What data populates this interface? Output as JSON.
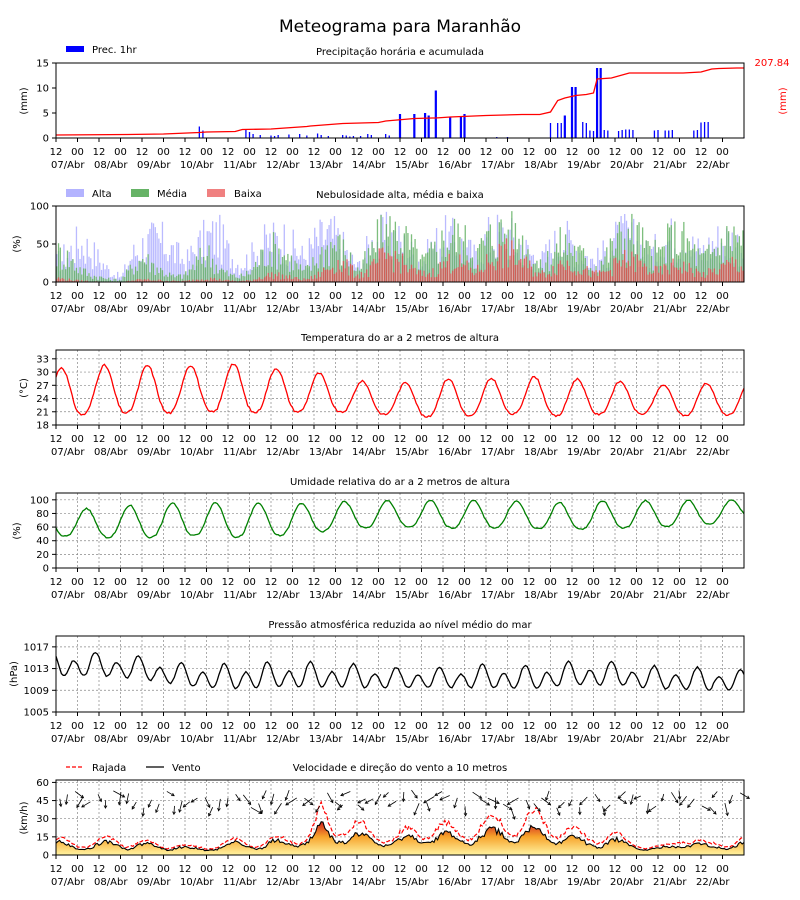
{
  "title": "Meteograma para Maranhão",
  "colors": {
    "precip_bar": "#0000ff",
    "precip_acc": "#ff0000",
    "cloud_high": "#b3b3ff",
    "cloud_mid": "#66b366",
    "cloud_low": "#e05050",
    "temperature": "#ff0000",
    "humidity": "#008000",
    "pressure": "#000000",
    "gust": "#ff0000",
    "wind": "#000000"
  },
  "x_axis": {
    "hour_labels": [
      "12",
      "00",
      "12",
      "00",
      "12",
      "00",
      "12",
      "00",
      "12",
      "00",
      "12",
      "00",
      "12",
      "00",
      "12",
      "00",
      "12",
      "00",
      "12",
      "00",
      "12",
      "00",
      "12",
      "00",
      "12",
      "00",
      "12",
      "00",
      "12",
      "00",
      "12",
      "00"
    ],
    "date_labels": [
      "07/Abr",
      "08/Abr",
      "09/Abr",
      "10/Abr",
      "11/Abr",
      "12/Abr",
      "13/Abr",
      "14/Abr",
      "15/Abr",
      "16/Abr",
      "17/Abr",
      "18/Abr",
      "19/Abr",
      "20/Abr",
      "21/Abr",
      "22/Abr"
    ],
    "n_hours": 384
  },
  "chart_data": [
    {
      "type": "bar",
      "title": "Precipitação horária e acumulada",
      "ylabel": "(mm)",
      "ylabel_right": "(mm)",
      "legend": "Prec. 1hr",
      "legend_position": "top-left",
      "ylim": [
        0,
        15
      ],
      "yticks": [
        "0",
        "5",
        "10",
        "15"
      ],
      "accumulated_total": "207.84",
      "series": [
        {
          "name": "Prec. 1hr",
          "kind": "bar",
          "x": [
            80,
            82,
            106,
            108,
            110,
            114,
            120,
            122,
            124,
            130,
            136,
            140,
            146,
            148,
            152,
            160,
            162,
            164,
            166,
            170,
            174,
            176,
            184,
            186,
            192,
            200,
            206,
            208,
            212,
            220,
            226,
            228,
            246,
            252,
            276,
            280,
            282,
            284,
            288,
            290,
            294,
            296,
            298,
            300,
            302,
            304,
            306,
            308,
            314,
            316,
            318,
            320,
            322,
            334,
            336,
            340,
            342,
            344,
            356,
            358,
            360,
            362,
            364,
            366,
            372,
            376,
            378,
            380,
            384
          ],
          "values": [
            2.3,
            1.5,
            1.8,
            1.2,
            0.8,
            0.6,
            0.5,
            0.4,
            0.6,
            0.7,
            0.8,
            0.5,
            0.9,
            0.6,
            0.4,
            0.6,
            0.5,
            0.3,
            0.4,
            0.4,
            0.8,
            0.6,
            0.8,
            0.5,
            4.8,
            4.8,
            5.0,
            4.5,
            9.5,
            4.3,
            4.4,
            4.8,
            0.2,
            0.2,
            3.0,
            3.0,
            3.0,
            4.5,
            10.2,
            10.2,
            3.2,
            3.0,
            1.5,
            1.4,
            14.0,
            14.0,
            1.6,
            1.5,
            1.4,
            1.6,
            1.7,
            1.7,
            1.6,
            1.5,
            1.6,
            1.5,
            1.5,
            1.6,
            1.5,
            1.6,
            3.1,
            3.2,
            3.2,
            0.1,
            0.1,
            0.1,
            0.1,
            0.1,
            0.1
          ]
        },
        {
          "name": "acumulada",
          "kind": "line",
          "x": [
            0,
            40,
            60,
            80,
            84,
            100,
            104,
            120,
            140,
            142,
            160,
            170,
            180,
            184,
            200,
            210,
            212,
            220,
            240,
            260,
            270,
            276,
            280,
            284,
            290,
            296,
            300,
            302,
            310,
            320,
            340,
            350,
            360,
            366,
            370,
            380,
            384
          ],
          "values": [
            0.6,
            0.7,
            0.8,
            1.1,
            1.2,
            1.3,
            1.7,
            1.8,
            2.3,
            2.4,
            2.9,
            3.0,
            3.1,
            3.4,
            3.9,
            4.0,
            4.0,
            4.2,
            4.5,
            4.7,
            4.7,
            5.2,
            7.5,
            8.0,
            8.5,
            8.7,
            9.0,
            11.8,
            12.0,
            13.0,
            13.0,
            13.0,
            13.2,
            13.8,
            13.9,
            14.0,
            14.0
          ]
        }
      ]
    },
    {
      "type": "bar",
      "title": "Nebulosidade alta, média e baixa",
      "ylabel": "(%)",
      "ylim": [
        0,
        100
      ],
      "yticks": [
        "0",
        "50",
        "100"
      ],
      "legend_position": "top-left",
      "series": [
        {
          "name": "Alta",
          "envelope": [
            40,
            60,
            80,
            70,
            45,
            20,
            10,
            55,
            75,
            85,
            80,
            60,
            40,
            70,
            90,
            95,
            60,
            35,
            50,
            75,
            85,
            90,
            70,
            50,
            80,
            95,
            90,
            60,
            30,
            70,
            90,
            95,
            80,
            60,
            40,
            75,
            90,
            85,
            70,
            50,
            90,
            98,
            95,
            80,
            60,
            40,
            70,
            90,
            80,
            60,
            40,
            60,
            85,
            95,
            80,
            55,
            70,
            90,
            95,
            75,
            60,
            80,
            90,
            85,
            70
          ]
        },
        {
          "name": "Média",
          "envelope": [
            60,
            50,
            30,
            15,
            10,
            5,
            5,
            30,
            50,
            35,
            20,
            10,
            15,
            40,
            60,
            30,
            15,
            10,
            20,
            50,
            70,
            60,
            40,
            20,
            40,
            70,
            80,
            55,
            25,
            50,
            90,
            100,
            95,
            70,
            40,
            60,
            85,
            95,
            80,
            55,
            85,
            100,
            100,
            90,
            60,
            30,
            55,
            80,
            70,
            50,
            30,
            50,
            80,
            100,
            95,
            60,
            55,
            85,
            90,
            70,
            45,
            60,
            85,
            95,
            80
          ]
        },
        {
          "name": "Baixa",
          "envelope": [
            8,
            5,
            3,
            2,
            1,
            0,
            0,
            3,
            5,
            4,
            3,
            2,
            2,
            5,
            8,
            5,
            3,
            2,
            3,
            10,
            15,
            12,
            8,
            5,
            10,
            25,
            40,
            30,
            15,
            20,
            45,
            55,
            40,
            25,
            15,
            20,
            35,
            45,
            30,
            20,
            40,
            55,
            60,
            45,
            30,
            15,
            25,
            40,
            35,
            25,
            15,
            20,
            35,
            45,
            40,
            25,
            20,
            30,
            35,
            25,
            15,
            20,
            30,
            40,
            30
          ]
        }
      ]
    },
    {
      "type": "line",
      "title": "Temperatura do ar a 2 metros de altura",
      "ylabel": "(°C)",
      "ylim": [
        18,
        35
      ],
      "yticks": [
        "18",
        "21",
        "24",
        "27",
        "30",
        "33"
      ],
      "grid": true,
      "series": [
        {
          "name": "Temperatura",
          "daily_max": [
            31.0,
            31.5,
            31.5,
            31.5,
            32.0,
            31.0,
            30.0,
            28.0,
            27.5,
            28.5,
            28.5,
            29.0,
            28.5,
            28.0,
            27.0,
            27.5,
            27.5
          ],
          "daily_min": [
            19.5,
            21.0,
            20.5,
            21.0,
            20.8,
            21.0,
            21.0,
            20.5,
            19.8,
            20.0,
            20.5,
            20.0,
            20.5,
            20.5,
            20.0,
            20.5
          ]
        }
      ]
    },
    {
      "type": "line",
      "title": "Umidade relativa do ar a 2 metros de altura",
      "ylabel": "(%)",
      "ylim": [
        0,
        110
      ],
      "yticks": [
        "0",
        "20",
        "40",
        "60",
        "80",
        "100"
      ],
      "grid": true,
      "series": [
        {
          "name": "Umidade",
          "daily_max": [
            88,
            87,
            95,
            96,
            96,
            94,
            97,
            99,
            99,
            99,
            98,
            96,
            99,
            99,
            100,
            100
          ],
          "daily_min": [
            47,
            45,
            45,
            48,
            45,
            48,
            55,
            60,
            60,
            58,
            60,
            55,
            58,
            60,
            62,
            72
          ]
        }
      ]
    },
    {
      "type": "line",
      "title": "Pressão atmosférica reduzida ao nível médio do mar",
      "ylabel": "(hPa)",
      "ylim": [
        1005,
        1019
      ],
      "yticks": [
        "1005",
        "1009",
        "1013",
        "1017"
      ],
      "grid": true,
      "series": [
        {
          "name": "Pressão",
          "mean": [
            1013.5,
            1013.5,
            1012.8,
            1011.5,
            1011.2,
            1011.5,
            1011.5,
            1011.3,
            1011.0,
            1011.0,
            1011.3,
            1011.0,
            1011.8,
            1011.8,
            1011.0,
            1010.8,
            1010.5
          ],
          "amplitude": [
            2.5,
            2.3,
            2.2,
            2.2,
            2.5,
            2.5,
            2.5,
            2.3,
            2.0,
            2.0,
            2.3,
            2.4,
            2.3,
            2.3,
            2.2,
            2.2,
            2.0
          ]
        }
      ]
    },
    {
      "type": "area",
      "title": "Velocidade e direção do vento a 10 metros",
      "ylabel": "(km/h)",
      "ylim": [
        0,
        62
      ],
      "yticks": [
        "0",
        "15",
        "30",
        "45",
        "60"
      ],
      "legend_position": "top-left",
      "grid": true,
      "series": [
        {
          "name": "Rajada",
          "envelope": [
            15,
            14,
            12,
            12,
            15,
            16,
            12,
            13,
            12,
            10,
            12,
            8,
            8,
            10,
            12,
            14,
            14,
            12,
            15,
            16,
            18,
            20,
            42,
            30,
            33,
            30,
            22,
            22,
            18,
            22,
            25,
            28,
            30,
            22,
            25,
            30,
            32,
            35,
            30,
            35,
            40,
            28,
            28,
            22,
            18,
            20,
            22,
            15,
            12,
            10,
            8,
            10,
            20,
            16,
            10,
            12,
            14,
            16
          ]
        },
        {
          "name": "Vento",
          "envelope": [
            11,
            10,
            9,
            9,
            11,
            12,
            9,
            10,
            9,
            8,
            9,
            6,
            6,
            8,
            9,
            11,
            11,
            9,
            12,
            13,
            14,
            15,
            26,
            20,
            20,
            18,
            15,
            15,
            13,
            15,
            18,
            19,
            20,
            16,
            17,
            20,
            21,
            22,
            20,
            22,
            24,
            19,
            19,
            15,
            12,
            13,
            15,
            11,
            9,
            7,
            6,
            8,
            14,
            12,
            8,
            9,
            11,
            12
          ]
        }
      ],
      "wind_direction": {
        "upper_arrows_count": 90
      }
    }
  ],
  "legend_labels": {
    "precip": "Prec. 1hr",
    "alta": "Alta",
    "media": "Média",
    "baixa": "Baixa",
    "rajada": "Rajada",
    "vento": "Vento"
  }
}
